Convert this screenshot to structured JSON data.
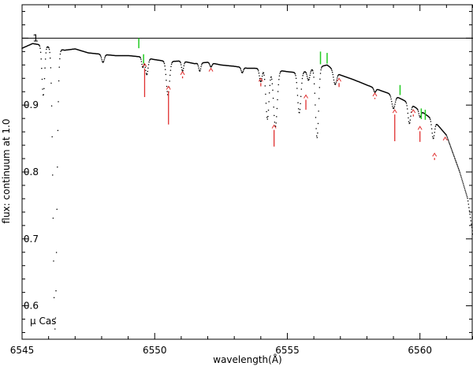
{
  "chart_data": {
    "type": "line",
    "title": "",
    "xlabel": "wavelength(Å)",
    "ylabel": "flux: continuum at 1.0",
    "xlim": [
      6545,
      6562
    ],
    "ylim": [
      0.55,
      1.05
    ],
    "x_ticks": [
      6545,
      6550,
      6555,
      6560
    ],
    "x_tick_labels": [
      "6545",
      "6550",
      "6555",
      "6560"
    ],
    "y_ticks": [
      0.6,
      0.7,
      0.8,
      0.9,
      1.0
    ],
    "y_tick_labels": [
      "0.6",
      "0.7",
      "0.8",
      "0.9",
      "1"
    ],
    "grid": false,
    "continuum_level": 1.0,
    "annotation": "μ Cas",
    "colors": {
      "spectrum": "#000000",
      "red_marks": "#e03030",
      "green_marks": "#22cc22",
      "continuum": "#000000"
    },
    "series": [
      {
        "style": "dotted",
        "continuum_points": [
          [
            6545.0,
            0.985
          ],
          [
            6545.4,
            0.992
          ],
          [
            6545.7,
            0.99
          ],
          [
            6546.6,
            0.982
          ],
          [
            6547.0,
            0.984
          ],
          [
            6547.5,
            0.978
          ],
          [
            6548.0,
            0.976
          ],
          [
            6548.5,
            0.974
          ],
          [
            6549.0,
            0.974
          ],
          [
            6549.5,
            0.972
          ],
          [
            6550.0,
            0.968
          ],
          [
            6550.5,
            0.965
          ],
          [
            6551.0,
            0.966
          ],
          [
            6551.5,
            0.962
          ],
          [
            6552.0,
            0.964
          ],
          [
            6552.5,
            0.96
          ],
          [
            6553.0,
            0.958
          ],
          [
            6553.5,
            0.955
          ],
          [
            6554.0,
            0.955
          ],
          [
            6554.5,
            0.953
          ],
          [
            6555.0,
            0.95
          ],
          [
            6555.5,
            0.948
          ],
          [
            6556.0,
            0.955
          ],
          [
            6556.5,
            0.96
          ],
          [
            6557.0,
            0.945
          ],
          [
            6557.5,
            0.938
          ],
          [
            6558.0,
            0.93
          ],
          [
            6558.5,
            0.922
          ],
          [
            6559.0,
            0.915
          ],
          [
            6559.5,
            0.905
          ],
          [
            6560.0,
            0.892
          ],
          [
            6560.5,
            0.878
          ],
          [
            6561.0,
            0.855
          ],
          [
            6561.5,
            0.8
          ],
          [
            6561.8,
            0.76
          ],
          [
            6562.0,
            0.705
          ]
        ],
        "absorption_lines": [
          {
            "center": 6545.8,
            "depth": 0.075,
            "width": 0.05
          },
          {
            "center": 6546.24,
            "depth": 0.42,
            "width": 0.07
          },
          {
            "center": 6548.05,
            "depth": 0.012,
            "width": 0.05
          },
          {
            "center": 6549.55,
            "depth": 0.015,
            "width": 0.04
          },
          {
            "center": 6549.7,
            "depth": 0.025,
            "width": 0.05
          },
          {
            "center": 6550.5,
            "depth": 0.05,
            "width": 0.06
          },
          {
            "center": 6551.05,
            "depth": 0.015,
            "width": 0.04
          },
          {
            "center": 6551.7,
            "depth": 0.012,
            "width": 0.04
          },
          {
            "center": 6552.12,
            "depth": 0.006,
            "width": 0.04
          },
          {
            "center": 6553.3,
            "depth": 0.008,
            "width": 0.04
          },
          {
            "center": 6554.0,
            "depth": 0.02,
            "width": 0.05
          },
          {
            "center": 6554.25,
            "depth": 0.075,
            "width": 0.06
          },
          {
            "center": 6554.55,
            "depth": 0.085,
            "width": 0.07
          },
          {
            "center": 6555.45,
            "depth": 0.06,
            "width": 0.06
          },
          {
            "center": 6555.8,
            "depth": 0.015,
            "width": 0.05
          },
          {
            "center": 6556.12,
            "depth": 0.105,
            "width": 0.06
          },
          {
            "center": 6556.8,
            "depth": 0.02,
            "width": 0.06
          },
          {
            "center": 6558.3,
            "depth": 0.006,
            "width": 0.04
          },
          {
            "center": 6559.0,
            "depth": 0.02,
            "width": 0.06
          },
          {
            "center": 6559.6,
            "depth": 0.03,
            "width": 0.05
          },
          {
            "center": 6560.0,
            "depth": 0.01,
            "width": 0.04
          },
          {
            "center": 6560.5,
            "depth": 0.028,
            "width": 0.05
          }
        ]
      }
    ],
    "red_markers": [
      {
        "x": 6549.62,
        "y": 0.962,
        "tick_bottom": 0.912
      },
      {
        "x": 6550.52,
        "y": 0.928,
        "tick_bottom": 0.871
      },
      {
        "x": 6551.05,
        "y": 0.95,
        "tick_bottom": 0.94
      },
      {
        "x": 6552.12,
        "y": 0.955,
        "tick_bottom": 0.948
      },
      {
        "x": 6554.0,
        "y": 0.94,
        "tick_bottom": 0.928
      },
      {
        "x": 6554.5,
        "y": 0.87,
        "tick_bottom": 0.838
      },
      {
        "x": 6555.7,
        "y": 0.915,
        "tick_bottom": 0.893
      },
      {
        "x": 6556.95,
        "y": 0.94,
        "tick_bottom": 0.927
      },
      {
        "x": 6558.3,
        "y": 0.918,
        "tick_bottom": 0.909
      },
      {
        "x": 6559.05,
        "y": 0.893,
        "tick_bottom": 0.846
      },
      {
        "x": 6559.75,
        "y": 0.893,
        "tick_bottom": 0.883
      },
      {
        "x": 6560.0,
        "y": 0.868,
        "tick_bottom": 0.845
      },
      {
        "x": 6560.55,
        "y": 0.828,
        "tick_bottom": 0.818
      },
      {
        "x": 6560.95,
        "y": 0.852,
        "tick_bottom": 0.845
      }
    ],
    "green_marks": [
      {
        "x": 6549.4,
        "y1": 0.985,
        "y2": 1.0
      },
      {
        "x": 6549.58,
        "y1": 0.962,
        "y2": 0.976
      },
      {
        "x": 6556.25,
        "y1": 0.961,
        "y2": 0.98
      },
      {
        "x": 6556.5,
        "y1": 0.962,
        "y2": 0.978
      },
      {
        "x": 6559.25,
        "y1": 0.915,
        "y2": 0.93
      },
      {
        "x": 6560.05,
        "y1": 0.879,
        "y2": 0.895
      },
      {
        "x": 6560.2,
        "y1": 0.878,
        "y2": 0.893
      }
    ]
  }
}
